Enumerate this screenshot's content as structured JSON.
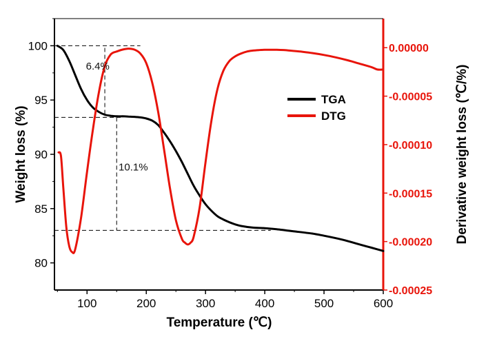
{
  "chart_data": {
    "type": "line",
    "xlabel": "Temperature (℃)",
    "ylabel_left": "Weight loss (%)",
    "ylabel_right": "Derivative weight loss (℃/%)",
    "xlim": [
      45,
      600
    ],
    "ylim_left": [
      77.5,
      102.5
    ],
    "ylim_right": [
      -0.00025,
      3e-05
    ],
    "x_ticks": [
      "100",
      "200",
      "300",
      "400",
      "500",
      "600"
    ],
    "x_tick_values": [
      100,
      200,
      300,
      400,
      500,
      600
    ],
    "y_left_ticks": [
      "80",
      "85",
      "90",
      "95",
      "100"
    ],
    "y_left_tick_values": [
      80,
      85,
      90,
      95,
      100
    ],
    "y_right_ticks": [
      "0.00000",
      "-0.00005",
      "-0.00010",
      "-0.00015",
      "-0.00020",
      "-0.00025"
    ],
    "y_right_tick_values": [
      0,
      -5e-05,
      -0.0001,
      -0.00015,
      -0.0002,
      -0.00025
    ],
    "legend_position": "center-right",
    "grid": false,
    "series": [
      {
        "name": "TGA",
        "axis": "left",
        "color": "#000000",
        "x": [
          50,
          60,
          70,
          80,
          90,
          100,
          110,
          120,
          130,
          140,
          150,
          160,
          170,
          180,
          190,
          200,
          210,
          220,
          230,
          240,
          250,
          260,
          270,
          280,
          290,
          300,
          310,
          320,
          330,
          340,
          350,
          360,
          380,
          400,
          420,
          450,
          480,
          500,
          530,
          560,
          580,
          600
        ],
        "y": [
          100,
          99.6,
          98.6,
          97.3,
          96.0,
          95.0,
          94.3,
          93.9,
          93.65,
          93.55,
          93.5,
          93.5,
          93.48,
          93.45,
          93.4,
          93.3,
          93.1,
          92.7,
          92.0,
          91.2,
          90.3,
          89.3,
          88.2,
          87.1,
          86.2,
          85.4,
          84.8,
          84.3,
          84.0,
          83.75,
          83.55,
          83.4,
          83.25,
          83.2,
          83.1,
          82.9,
          82.7,
          82.5,
          82.15,
          81.7,
          81.4,
          81.1
        ]
      },
      {
        "name": "DTG",
        "axis": "right",
        "color": "#e8140a",
        "x": [
          52,
          56,
          60,
          65,
          70,
          75,
          80,
          90,
          100,
          110,
          120,
          130,
          140,
          150,
          160,
          170,
          180,
          190,
          200,
          210,
          220,
          230,
          240,
          250,
          260,
          265,
          270,
          275,
          280,
          290,
          300,
          310,
          320,
          330,
          340,
          350,
          360,
          370,
          380,
          390,
          400,
          420,
          440,
          460,
          480,
          500,
          520,
          540,
          560,
          580,
          590,
          600
        ],
        "y": [
          -0.000108,
          -0.000112,
          -0.000145,
          -0.000185,
          -0.000205,
          -0.000211,
          -0.000208,
          -0.000175,
          -0.000128,
          -8.4e-05,
          -4.6e-05,
          -1.9e-05,
          -7e-06,
          -4e-06,
          -2e-06,
          -1e-06,
          -2e-06,
          -6e-06,
          -1.6e-05,
          -3.6e-05,
          -6.6e-05,
          -0.000105,
          -0.000145,
          -0.000178,
          -0.000197,
          -0.000201,
          -0.000203,
          -0.000201,
          -0.000195,
          -0.000165,
          -0.000118,
          -7.5e-05,
          -4.3e-05,
          -2.4e-05,
          -1.4e-05,
          -9e-06,
          -6e-06,
          -4e-06,
          -3e-06,
          -2.5e-06,
          -2.2e-06,
          -2.2e-06,
          -2.8e-06,
          -4e-06,
          -5.5e-06,
          -7.5e-06,
          -1e-05,
          -1.3e-05,
          -1.65e-05,
          -2e-05,
          -2.25e-05,
          -2.25e-05
        ]
      }
    ],
    "annotations": [
      {
        "text": "6.4%",
        "x": 118,
        "y_left": 97.8
      },
      {
        "text": "10.1%",
        "x": 178,
        "y_left": 88.5
      }
    ],
    "reference_lines": [
      {
        "from": [
          45,
          100
        ],
        "to": [
          190,
          100
        ]
      },
      {
        "from": [
          45,
          93.4
        ],
        "to": [
          158,
          93.4
        ]
      },
      {
        "from": [
          45,
          83.0
        ],
        "to": [
          410,
          83.0
        ]
      },
      {
        "from": [
          130,
          99.8
        ],
        "to": [
          130,
          93.4
        ]
      },
      {
        "from": [
          150,
          93.4
        ],
        "to": [
          150,
          83.0
        ]
      }
    ]
  }
}
